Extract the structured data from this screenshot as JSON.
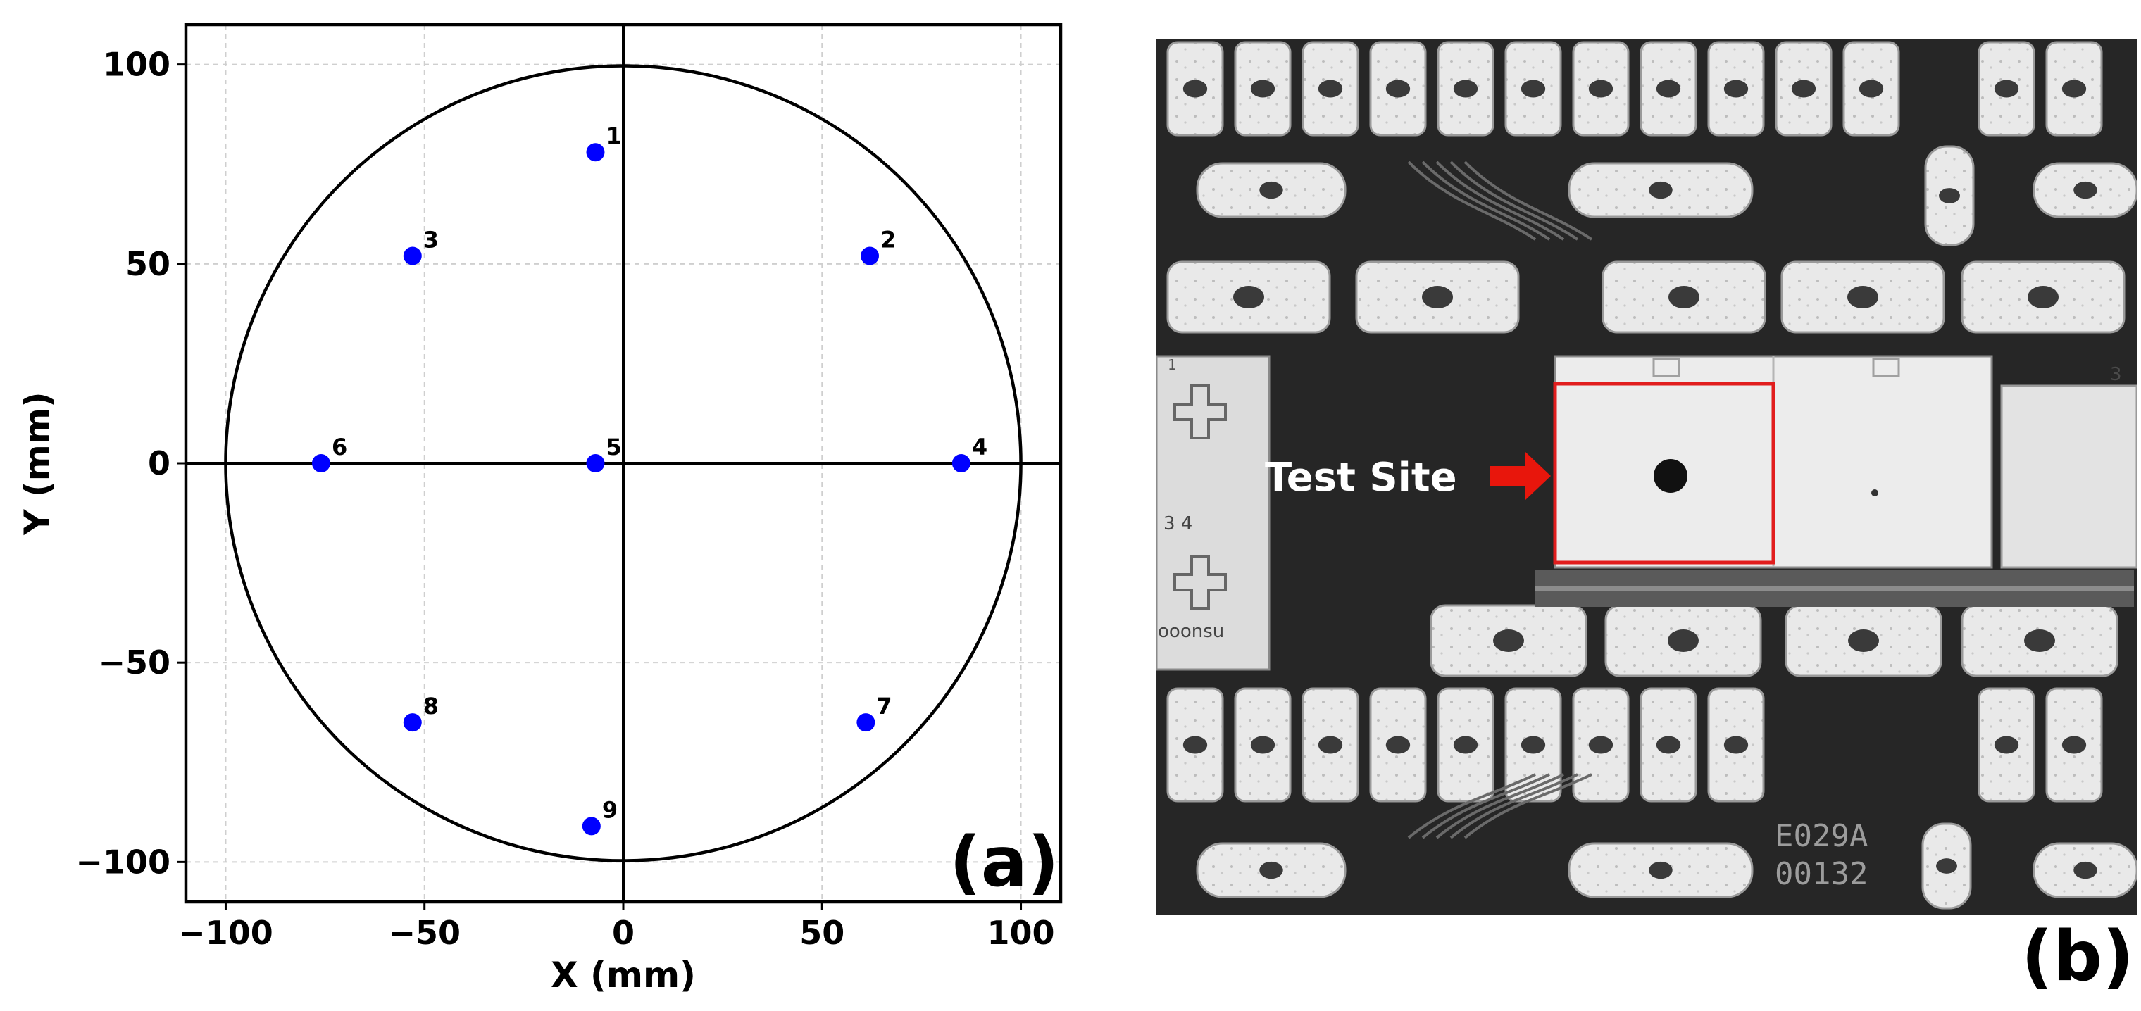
{
  "panels": {
    "a": "(a)",
    "b": "(b)"
  },
  "micrograph": {
    "annotation": "Test Site",
    "marking_line1": "E029A",
    "marking_line2": "00132",
    "pad_label_34": "3 4",
    "corner_text": "ooonsu",
    "tiny_digit_1": "3",
    "tiny_digit_2": "1",
    "arrow_color": "#e8160c",
    "box_color": "#e11d1d"
  },
  "chart_data": {
    "type": "scatter",
    "title": "",
    "xlabel": "X (mm)",
    "ylabel": "Y (mm)",
    "xlim": [
      -110,
      110
    ],
    "ylim": [
      -110,
      110
    ],
    "xticks": [
      -100,
      -50,
      0,
      50,
      100
    ],
    "yticks": [
      -100,
      -50,
      0,
      50,
      100
    ],
    "tick_labels": [
      "−100",
      "−50",
      "0",
      "50",
      "100"
    ],
    "grid": true,
    "wafer_radius": 100,
    "point_color": "#0000ff",
    "points": [
      {
        "label": "1",
        "x": -7,
        "y": 78
      },
      {
        "label": "2",
        "x": 62,
        "y": 52
      },
      {
        "label": "3",
        "x": -53,
        "y": 52
      },
      {
        "label": "4",
        "x": 85,
        "y": 0
      },
      {
        "label": "5",
        "x": -7,
        "y": 0
      },
      {
        "label": "6",
        "x": -76,
        "y": 0
      },
      {
        "label": "7",
        "x": 61,
        "y": -65
      },
      {
        "label": "8",
        "x": -53,
        "y": -65
      },
      {
        "label": "9",
        "x": -8,
        "y": -91
      }
    ]
  }
}
